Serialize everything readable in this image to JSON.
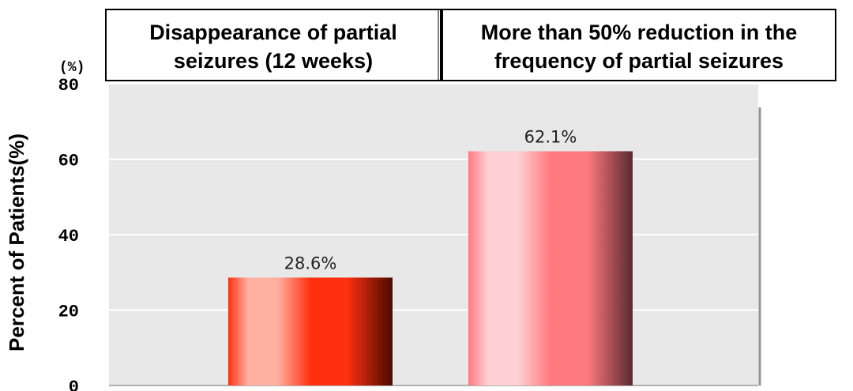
{
  "chart_data": {
    "type": "bar",
    "categories": [
      "Disappearance of partial seizures (12 weeks)",
      "More than 50% reduction in the frequency of partial seizures"
    ],
    "category_header_lines": [
      [
        "Disappearance of partial",
        "seizures (12 weeks)"
      ],
      [
        "More than 50% reduction in the",
        "frequency of partial seizures"
      ]
    ],
    "values": [
      28.6,
      62.1
    ],
    "data_labels": [
      "28.6%",
      "62.1%"
    ],
    "ylabel": "Percent of Patients(%)",
    "y_unit_label": "(%)",
    "yticks": [
      0,
      20,
      40,
      60,
      80
    ],
    "ytick_labels": [
      "0",
      "20",
      "40",
      "60",
      "80"
    ],
    "ylim": [
      0,
      80
    ],
    "grid": true,
    "bar_colors": [
      "#ff3010",
      "#ff7a80"
    ],
    "bar_dark_colors": [
      "#4a0a00",
      "#5a2a2e"
    ],
    "bar_light_colors": [
      "#ffb0a0",
      "#ffd0d4"
    ],
    "plot_background": "#e8e8e8"
  }
}
